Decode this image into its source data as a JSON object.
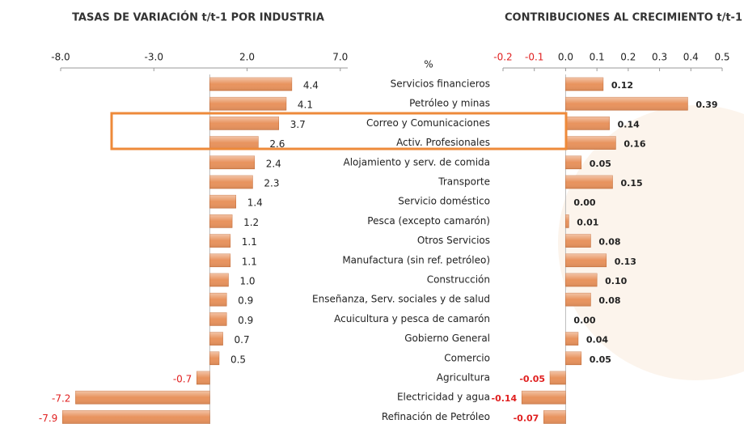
{
  "chart_data": [
    {
      "type": "hbar",
      "title": "TASAS DE VARIACIÓN t/t-1 POR INDUSTRIA",
      "unit": "%",
      "categories": [
        "Servicios financieros",
        "Petróleo y minas",
        "Correo y Comunicaciones",
        "Activ. Profesionales",
        "Alojamiento y serv. de comida",
        "Transporte",
        "Servicio doméstico",
        "Pesca (excepto camarón)",
        "Otros Servicios",
        "Manufactura (sin ref. petróleo)",
        "Construcción",
        "Enseñanza, Serv. sociales y de salud",
        "Acuicultura y pesca de camarón",
        "Gobierno General",
        "Comercio",
        "Agricultura",
        "Electricidad y agua",
        "Refinación de Petróleo"
      ],
      "values": [
        4.4,
        4.1,
        3.7,
        2.6,
        2.4,
        2.3,
        1.4,
        1.2,
        1.1,
        1.1,
        1.0,
        0.9,
        0.9,
        0.7,
        0.5,
        -0.7,
        -7.2,
        -7.9
      ],
      "value_labels": [
        "4.4",
        "4.1",
        "3.7",
        "2.6",
        "2.4",
        "2.3",
        "1.4",
        "1.2",
        "1.1",
        "1.1",
        "1.0",
        "0.9",
        "0.9",
        "0.7",
        "0.5",
        "-0.7",
        "-7.2",
        "-7.9"
      ],
      "color": "#e8935e",
      "negative_label_color": "#e02020",
      "xlim": [
        -8,
        7.4
      ],
      "xticks": [
        {
          "value": -8,
          "label": "-8.0"
        },
        {
          "value": -3,
          "label": "-3.0"
        },
        {
          "value": 2,
          "label": "2.0"
        },
        {
          "value": 7,
          "label": "7.0"
        }
      ]
    },
    {
      "type": "hbar",
      "title": "CONTRIBUCIONES AL CRECIMIENTO t/t-1",
      "values": [
        0.12,
        0.39,
        0.14,
        0.16,
        0.05,
        0.15,
        0.0,
        0.01,
        0.08,
        0.13,
        0.1,
        0.08,
        0.0,
        0.04,
        0.05,
        -0.05,
        -0.14,
        -0.07
      ],
      "value_labels": [
        "0.12",
        "0.39",
        "0.14",
        "0.16",
        "0.05",
        "0.15",
        "0.00",
        "0.01",
        "0.08",
        "0.13",
        "0.10",
        "0.08",
        "0.00",
        "0.04",
        "0.05",
        "-0.05",
        "-0.14",
        "-0.07"
      ],
      "color": "#e8935e",
      "negative_label_color": "#e02020",
      "xlim": [
        -0.2,
        0.5
      ],
      "xticks": [
        {
          "value": -0.2,
          "label": "-0.2"
        },
        {
          "value": -0.1,
          "label": "-0.1"
        },
        {
          "value": 0,
          "label": "0.0"
        },
        {
          "value": 0.1,
          "label": "0.1"
        },
        {
          "value": 0.2,
          "label": "0.2"
        },
        {
          "value": 0.3,
          "label": "0.3"
        },
        {
          "value": 0.4,
          "label": "0.4"
        },
        {
          "value": 0.5,
          "label": "0.5"
        }
      ]
    }
  ]
}
